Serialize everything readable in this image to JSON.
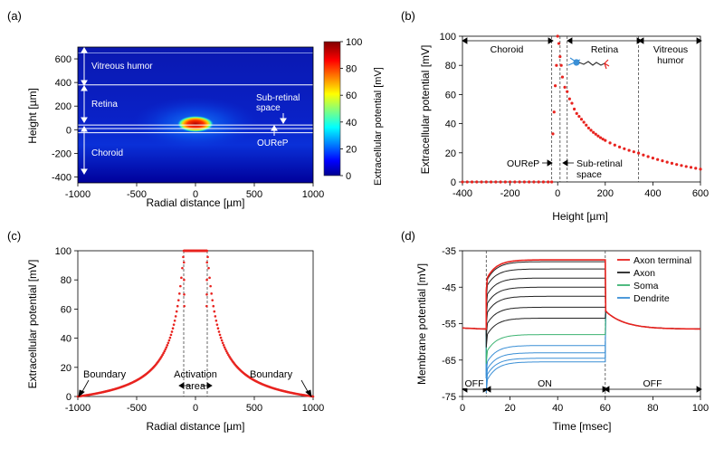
{
  "chart_data": [
    {
      "panel": "(a)",
      "type": "heatmap",
      "xlabel": "Radial distance [µm]",
      "ylabel": "Height [µm]",
      "colorbar_label": "Extracellular potential [mV]",
      "xlim": [
        -1000,
        1000
      ],
      "ylim": [
        -450,
        700
      ],
      "xticks": [
        "-1000",
        "-500",
        "0",
        "500",
        "1000"
      ],
      "yticks": [
        "-400",
        "-200",
        "0",
        "200",
        "400",
        "600"
      ],
      "colorbar_ticks": [
        "0",
        "20",
        "40",
        "60",
        "80",
        "100"
      ],
      "clim": [
        0,
        100
      ],
      "layer_boundaries": [
        380,
        40,
        10,
        -25
      ],
      "hotspot": {
        "x": 0,
        "y": 0,
        "value": 100
      },
      "regions": [
        "Vitreous humor",
        "Retina",
        "Sub-retinal space",
        "OUReP",
        "Choroid"
      ],
      "colors": {
        "low": "#00008f",
        "mid": "#00ffff",
        "high": "#800000"
      }
    },
    {
      "panel": "(b)",
      "type": "scatter",
      "xlabel": "Height [µm]",
      "ylabel": "Extracellular potential [mV]",
      "xlim": [
        -400,
        600
      ],
      "ylim": [
        0,
        100
      ],
      "xticks": [
        "-400",
        "-200",
        "0",
        "200",
        "400",
        "600"
      ],
      "yticks": [
        "0",
        "20",
        "40",
        "60",
        "80",
        "100"
      ],
      "regions": [
        "Choroid",
        "Retina",
        "Vitreous humor",
        "OUReP",
        "Sub-retinal space"
      ],
      "boundaries": [
        -25,
        10,
        40,
        340
      ],
      "series": [
        {
          "color": "#e8231f",
          "x": [
            -400,
            -380,
            -360,
            -340,
            -320,
            -300,
            -280,
            -260,
            -240,
            -220,
            -200,
            -180,
            -160,
            -140,
            -120,
            -100,
            -80,
            -60,
            -40,
            -25,
            -20,
            -15,
            -10,
            -5,
            0,
            5,
            10,
            15,
            20,
            30,
            40,
            50,
            60,
            70,
            80,
            90,
            100,
            110,
            120,
            130,
            140,
            150,
            160,
            170,
            180,
            190,
            200,
            220,
            240,
            260,
            280,
            300,
            320,
            340,
            360,
            380,
            400,
            420,
            440,
            460,
            480,
            500,
            520,
            540,
            560,
            580,
            600
          ],
          "y": [
            0,
            0,
            0,
            0,
            0,
            0,
            0,
            0,
            0,
            0,
            0,
            0,
            0,
            0,
            0,
            0,
            0,
            0,
            0,
            0,
            33,
            48,
            66,
            80,
            100,
            95,
            86,
            80,
            72,
            65,
            62,
            57,
            54,
            50,
            47,
            45,
            43,
            41,
            39,
            37,
            35.5,
            34,
            32.8,
            31.5,
            30.4,
            29.4,
            28.5,
            26.8,
            25.3,
            24,
            22.8,
            21.7,
            20.7,
            19.8,
            18.5,
            17.4,
            16.4,
            15.4,
            14.5,
            13.6,
            12.8,
            12,
            11.3,
            10.6,
            10,
            9.4,
            8.8
          ]
        }
      ],
      "colors": {
        "points": "#e8231f",
        "neuron_axon": "#333333",
        "neuron_dendrite": "#3a8fd6",
        "neuron_terminal": "#e8231f"
      }
    },
    {
      "panel": "(c)",
      "type": "scatter",
      "xlabel": "Radial distance [µm]",
      "ylabel": "Extracellular potential [mV]",
      "xlim": [
        -1000,
        1000
      ],
      "ylim": [
        0,
        100
      ],
      "xticks": [
        "-1000",
        "-500",
        "0",
        "500",
        "1000"
      ],
      "yticks": [
        "0",
        "20",
        "40",
        "60",
        "80",
        "100"
      ],
      "activation_half_width": 100,
      "annotations": [
        "Boundary",
        "Activation area",
        "Boundary"
      ],
      "colors": {
        "points": "#e8231f"
      }
    },
    {
      "panel": "(d)",
      "type": "line",
      "xlabel": "Time [msec]",
      "ylabel": "Membrane potential [mV]",
      "xlim": [
        0,
        100
      ],
      "ylim": [
        -75,
        -35
      ],
      "xticks": [
        "0",
        "20",
        "40",
        "60",
        "80",
        "100"
      ],
      "yticks": [
        "-35",
        "-45",
        "-55",
        "-65",
        "-75"
      ],
      "phases": [
        "OFF",
        "ON",
        "OFF"
      ],
      "phase_bounds": [
        0,
        10,
        60,
        100
      ],
      "resting": -56.5,
      "legend_position": "top-right",
      "legend": [
        {
          "name": "Axon terminal",
          "color": "#e8231f"
        },
        {
          "name": "Axon",
          "color": "#222222"
        },
        {
          "name": "Soma",
          "color": "#3cb371"
        },
        {
          "name": "Dendrite",
          "color": "#3a8fd6"
        }
      ],
      "series": [
        {
          "name": "Axon terminal",
          "color": "#e8231f",
          "plateau": -37.5,
          "dip": -43
        },
        {
          "name": "Axon",
          "color": "#222222",
          "plateau": -38,
          "dip": -43.5
        },
        {
          "name": "Axon",
          "color": "#222222",
          "plateau": -40,
          "dip": -45
        },
        {
          "name": "Axon",
          "color": "#222222",
          "plateau": -42.5,
          "dip": -47.5
        },
        {
          "name": "Axon",
          "color": "#222222",
          "plateau": -45,
          "dip": -50
        },
        {
          "name": "Axon",
          "color": "#222222",
          "plateau": -47.5,
          "dip": -52.5
        },
        {
          "name": "Axon",
          "color": "#222222",
          "plateau": -50.5,
          "dip": -55.5
        },
        {
          "name": "Axon",
          "color": "#222222",
          "plateau": -53.5,
          "dip": -58.5
        },
        {
          "name": "Soma",
          "color": "#3cb371",
          "plateau": -58,
          "dip": -63
        },
        {
          "name": "Dendrite",
          "color": "#3a8fd6",
          "plateau": -61,
          "dip": -66
        },
        {
          "name": "Dendrite",
          "color": "#3a8fd6",
          "plateau": -63,
          "dip": -68
        },
        {
          "name": "Dendrite",
          "color": "#3a8fd6",
          "plateau": -64.5,
          "dip": -69.5
        },
        {
          "name": "Dendrite",
          "color": "#3a8fd6",
          "plateau": -65.5,
          "dip": -71
        }
      ]
    }
  ],
  "panels": {
    "a": "(a)",
    "b": "(b)",
    "c": "(c)",
    "d": "(d)"
  },
  "labels": {
    "vitreous": "Vitreous humor",
    "retina": "Retina",
    "subretinal_1": "Sub-retinal",
    "subretinal_2": "space",
    "subretinal_b2": "space",
    "sub_b": "Sub-retinal",
    "ourep": "OUReP",
    "choroid": "Choroid",
    "vitreous_b1": "Vitreous",
    "vitreous_b2": "humor",
    "boundary": "Boundary",
    "activation_1": "Activation",
    "activation_2": "area"
  }
}
